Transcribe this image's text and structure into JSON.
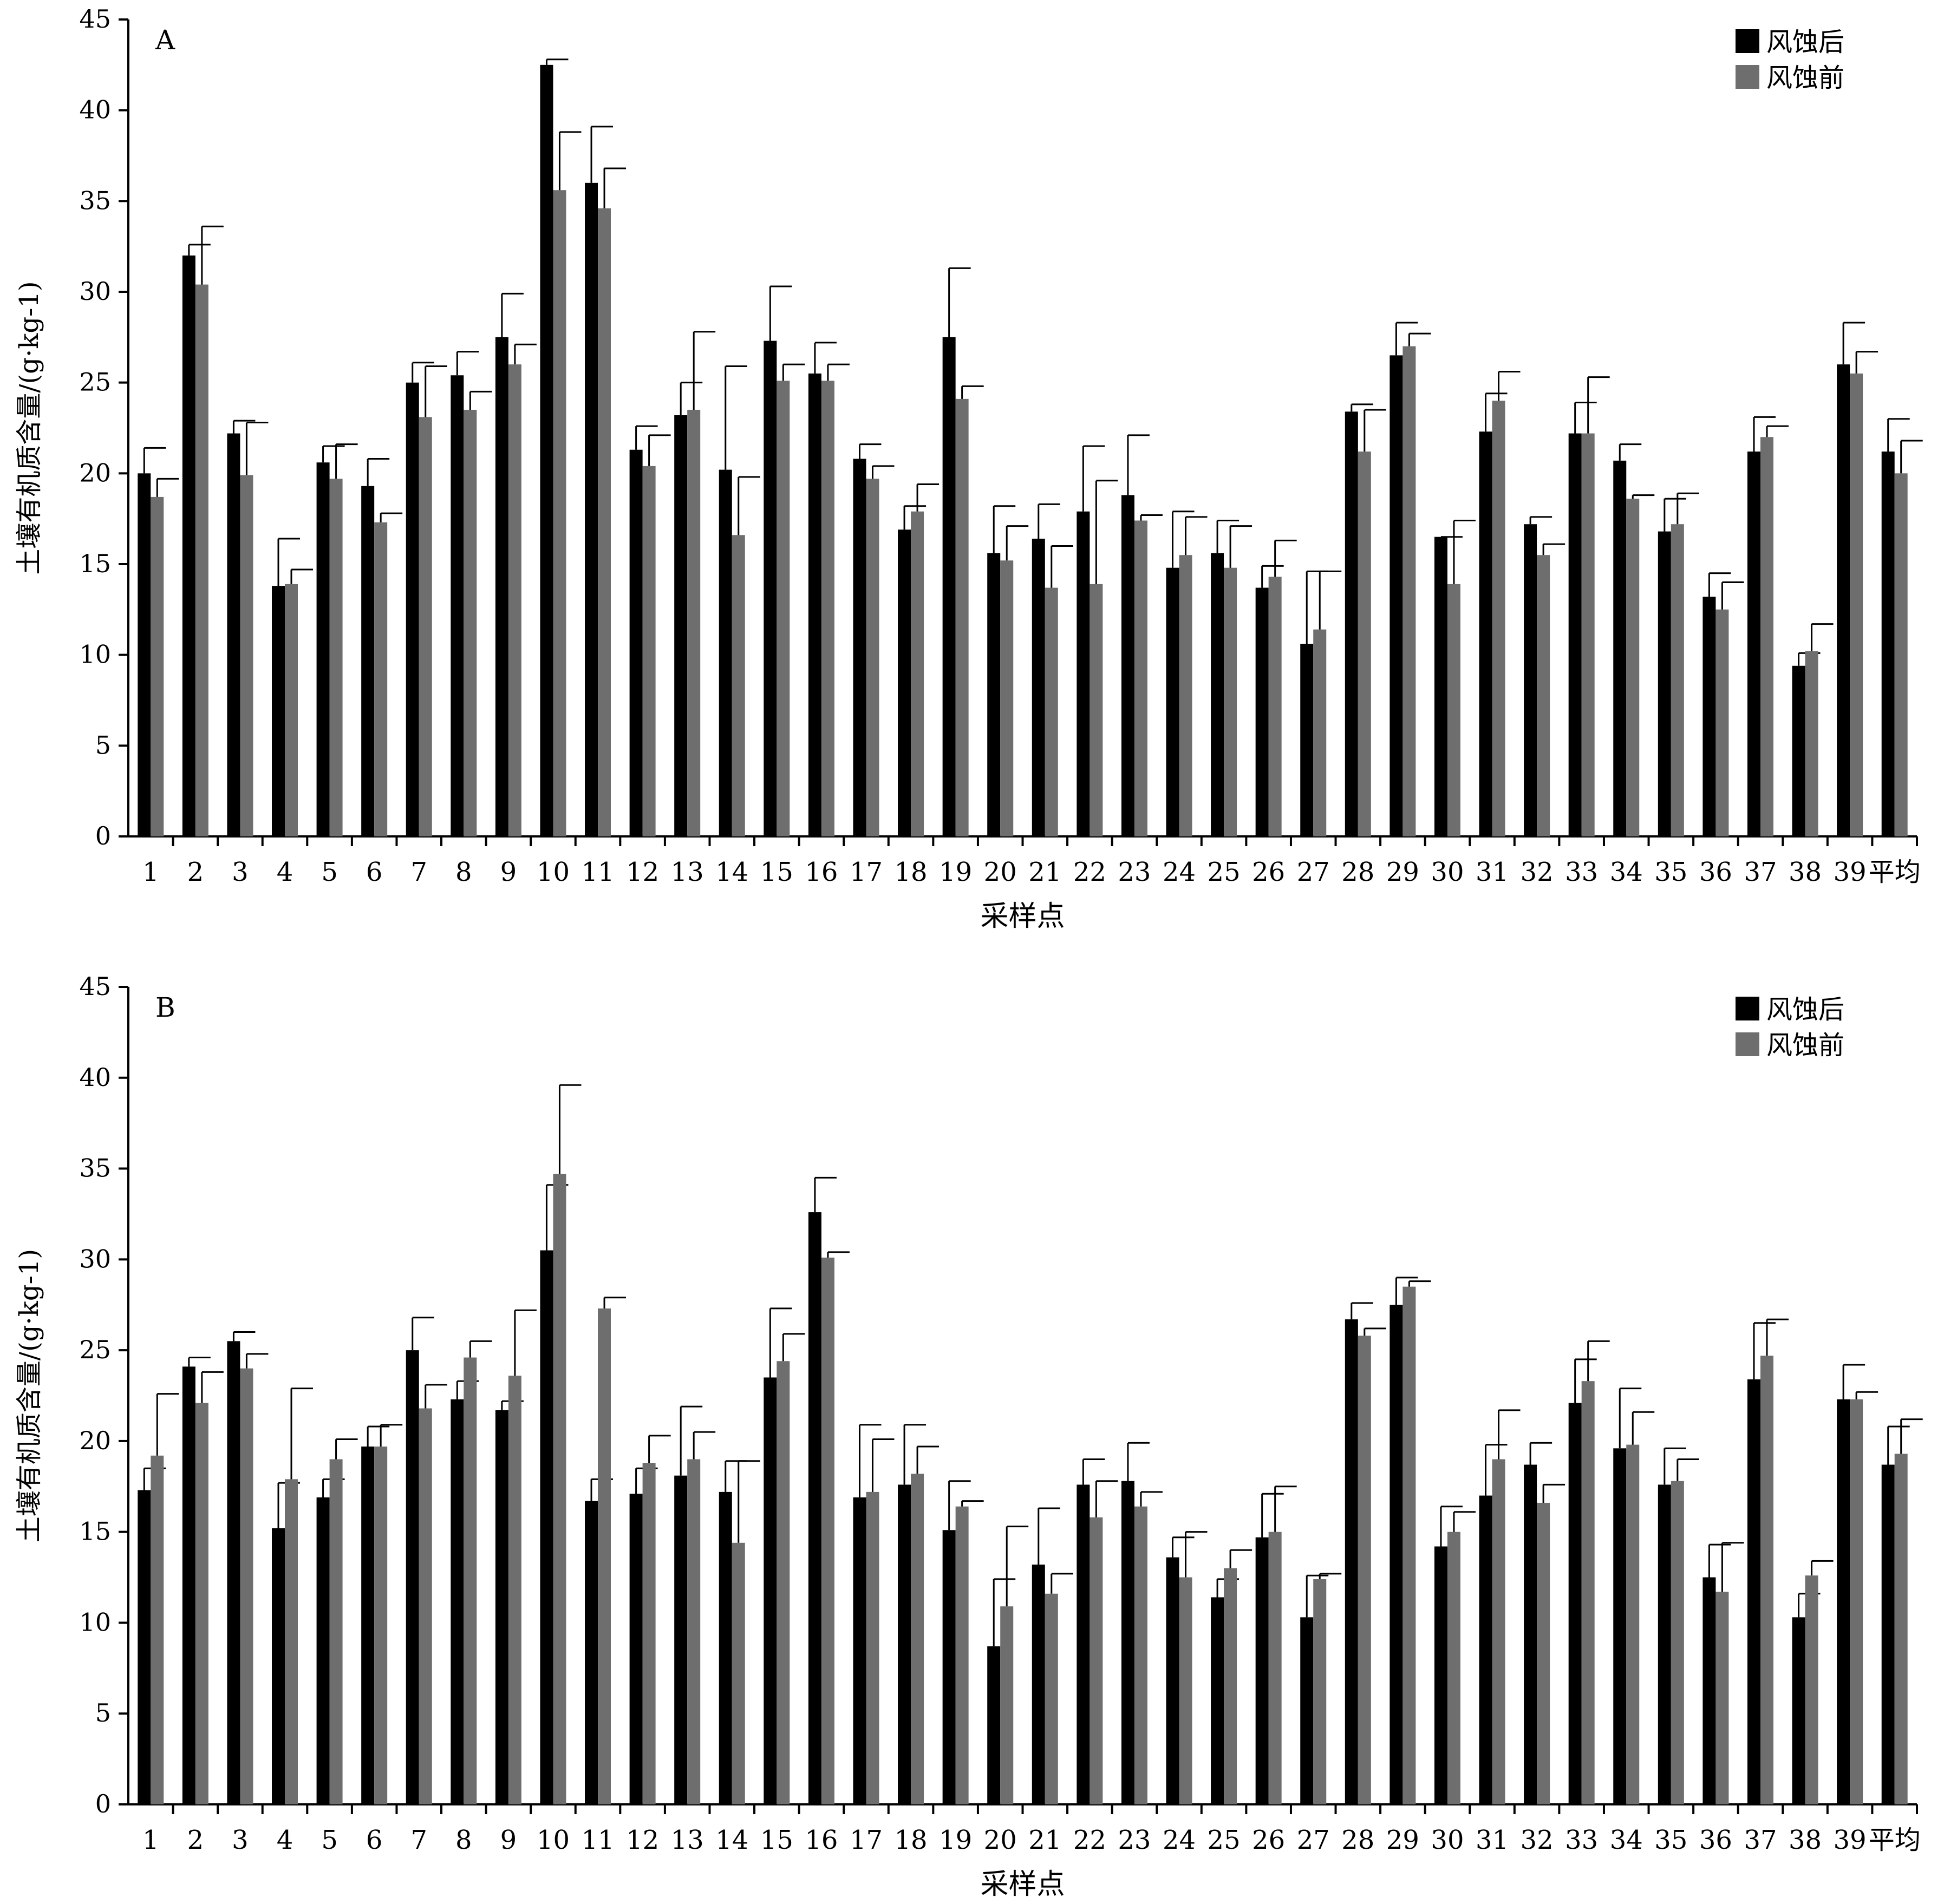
{
  "colors": {
    "after": "#000000",
    "before": "#6e6e6e",
    "axis": "#000000"
  },
  "chart_data": [
    {
      "type": "bar",
      "panel_label": "A",
      "xlabel": "采样点",
      "ylabel": "土壤有机质含量/(g·kg-1)",
      "ylim": [
        0,
        45
      ],
      "yticks": [
        0,
        5,
        10,
        15,
        20,
        25,
        30,
        35,
        40,
        45
      ],
      "legend_position": "top-right",
      "categories": [
        "1",
        "2",
        "3",
        "4",
        "5",
        "6",
        "7",
        "8",
        "9",
        "10",
        "11",
        "12",
        "13",
        "14",
        "15",
        "16",
        "17",
        "18",
        "19",
        "20",
        "21",
        "22",
        "23",
        "24",
        "25",
        "26",
        "27",
        "28",
        "29",
        "30",
        "31",
        "32",
        "33",
        "34",
        "35",
        "36",
        "37",
        "38",
        "39",
        "平均"
      ],
      "series": [
        {
          "name": "风蚀后",
          "values": [
            20.0,
            32.0,
            22.2,
            13.8,
            20.6,
            19.3,
            25.0,
            25.4,
            27.5,
            42.5,
            36.0,
            21.3,
            23.2,
            20.2,
            27.3,
            25.5,
            20.8,
            16.9,
            27.5,
            15.6,
            16.4,
            17.9,
            18.8,
            14.8,
            15.6,
            13.7,
            10.6,
            23.4,
            26.5,
            16.5,
            22.3,
            17.2,
            22.2,
            20.7,
            16.8,
            13.2,
            21.2,
            9.4,
            26.0,
            21.2
          ],
          "errors": [
            1.4,
            0.6,
            0.7,
            2.6,
            0.9,
            1.5,
            1.1,
            1.3,
            2.4,
            0.3,
            3.1,
            1.3,
            1.8,
            5.7,
            3.0,
            1.7,
            0.8,
            1.3,
            3.8,
            2.6,
            1.9,
            3.6,
            3.3,
            3.1,
            1.8,
            1.2,
            4.0,
            0.4,
            1.8,
            0.0,
            2.1,
            0.4,
            1.7,
            0.9,
            1.8,
            1.3,
            1.9,
            0.7,
            2.3,
            1.8
          ]
        },
        {
          "name": "风蚀前",
          "values": [
            18.7,
            30.4,
            19.9,
            13.9,
            19.7,
            17.3,
            23.1,
            23.5,
            26.0,
            35.6,
            34.6,
            20.4,
            23.5,
            16.6,
            25.1,
            25.1,
            19.7,
            17.9,
            24.1,
            15.2,
            13.7,
            13.9,
            17.4,
            15.5,
            14.8,
            14.3,
            11.4,
            21.2,
            27.0,
            13.9,
            24.0,
            15.5,
            22.2,
            18.6,
            17.2,
            12.5,
            22.0,
            10.2,
            25.5,
            20.0
          ],
          "errors": [
            1.0,
            3.2,
            2.9,
            0.8,
            1.9,
            0.5,
            2.8,
            1.0,
            1.1,
            3.2,
            2.2,
            1.7,
            4.3,
            3.2,
            0.9,
            0.9,
            0.7,
            1.5,
            0.7,
            1.9,
            2.3,
            5.7,
            0.3,
            2.1,
            2.3,
            2.0,
            3.2,
            2.3,
            0.7,
            3.5,
            1.6,
            0.6,
            3.1,
            0.2,
            1.7,
            1.5,
            0.6,
            1.5,
            1.2,
            1.8
          ]
        }
      ]
    },
    {
      "type": "bar",
      "panel_label": "B",
      "xlabel": "采样点",
      "ylabel": "土壤有机质含量/(g·kg-1)",
      "ylim": [
        0,
        45
      ],
      "yticks": [
        0,
        5,
        10,
        15,
        20,
        25,
        30,
        35,
        40,
        45
      ],
      "legend_position": "top-right",
      "categories": [
        "1",
        "2",
        "3",
        "4",
        "5",
        "6",
        "7",
        "8",
        "9",
        "10",
        "11",
        "12",
        "13",
        "14",
        "15",
        "16",
        "17",
        "18",
        "19",
        "20",
        "21",
        "22",
        "23",
        "24",
        "25",
        "26",
        "27",
        "28",
        "29",
        "30",
        "31",
        "32",
        "33",
        "34",
        "35",
        "36",
        "37",
        "38",
        "39",
        "平均"
      ],
      "series": [
        {
          "name": "风蚀后",
          "values": [
            17.3,
            24.1,
            25.5,
            15.2,
            16.9,
            19.7,
            25.0,
            22.3,
            21.7,
            30.5,
            16.7,
            17.1,
            18.1,
            17.2,
            23.5,
            32.6,
            16.9,
            17.6,
            15.1,
            8.7,
            13.2,
            17.6,
            17.8,
            13.6,
            11.4,
            14.7,
            10.3,
            26.7,
            27.5,
            14.2,
            17.0,
            18.7,
            22.1,
            19.6,
            17.6,
            12.5,
            23.4,
            10.3,
            22.3,
            18.7
          ],
          "errors": [
            1.2,
            0.5,
            0.5,
            2.5,
            1.0,
            1.1,
            1.8,
            1.0,
            0.5,
            3.6,
            1.2,
            1.4,
            3.8,
            1.7,
            3.8,
            1.9,
            4.0,
            3.3,
            2.7,
            3.7,
            3.1,
            1.4,
            2.1,
            1.1,
            1.0,
            2.4,
            2.3,
            0.9,
            1.5,
            2.2,
            2.8,
            1.2,
            2.4,
            3.3,
            2.0,
            1.8,
            3.1,
            1.3,
            1.9,
            2.1
          ]
        },
        {
          "name": "风蚀前",
          "values": [
            19.2,
            22.1,
            24.0,
            17.9,
            19.0,
            19.7,
            21.8,
            24.6,
            23.6,
            34.7,
            27.3,
            18.8,
            19.0,
            14.4,
            24.4,
            30.1,
            17.2,
            18.2,
            16.4,
            10.9,
            11.6,
            15.8,
            16.4,
            12.5,
            13.0,
            15.0,
            12.4,
            25.8,
            28.5,
            15.0,
            19.0,
            16.6,
            23.3,
            19.8,
            17.8,
            11.7,
            24.7,
            12.6,
            22.3,
            19.3
          ],
          "errors": [
            3.4,
            1.7,
            0.8,
            5.0,
            1.1,
            1.2,
            1.3,
            0.9,
            3.6,
            4.9,
            0.6,
            1.5,
            1.5,
            4.5,
            1.5,
            0.3,
            2.9,
            1.5,
            0.3,
            4.4,
            1.1,
            2.0,
            0.8,
            2.5,
            1.0,
            2.5,
            0.3,
            0.4,
            0.3,
            1.1,
            2.7,
            1.0,
            2.2,
            1.8,
            1.2,
            2.7,
            2.0,
            0.8,
            0.4,
            1.9
          ]
        }
      ]
    }
  ]
}
